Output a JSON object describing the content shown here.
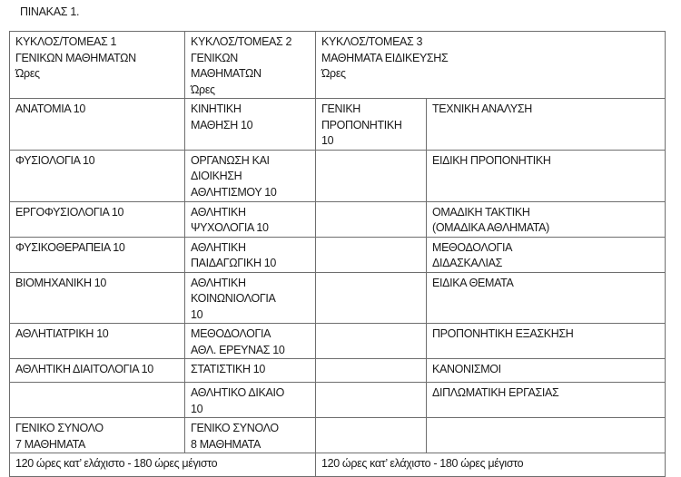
{
  "title": "ΠΙΝΑΚΑΣ 1.",
  "headers": [
    "ΚΥΚΛΟΣ/ΤΟΜΕΑΣ 1\nΓΕΝΙΚΩΝ ΜΑΘΗΜΑΤΩΝ\nΏρες",
    "ΚΥΚΛΟΣ/ΤΟΜΕΑΣ 2\nΓΕΝΙΚΩΝ\nΜΑΘΗΜΑΤΩΝ\nΏρες",
    "ΚΥΚΛΟΣ/ΤΟΜΕΑΣ 3\nΜΑΘΗΜΑΤΑ ΕΙΔΙΚΕΥΣΗΣ\nΏρες"
  ],
  "rows": [
    [
      "ΑΝΑΤΟΜΙΑ 10",
      "ΚΙΝΗΤΙΚΗ\nΜΑΘΗΣΗ 10",
      "ΓΕΝΙΚΗ\nΠΡΟΠΟΝΗΤΙΚΗ\n10",
      "ΤΕΧΝΙΚΗ ΑΝΑΛΥΣΗ"
    ],
    [
      "ΦΥΣΙΟΛΟΓΙΑ 10",
      "ΟΡΓΑΝΩΣΗ ΚΑΙ\nΔΙΟΙΚΗΣΗ\nΑΘΛΗΤΙΣΜΟΥ 10",
      "",
      "ΕΙΔΙΚΗ ΠΡΟΠΟΝΗΤΙΚΗ"
    ],
    [
      "ΕΡΓΟΦΥΣΙΟΛΟΓΙΑ 10",
      "ΑΘΛΗΤΙΚΗ\nΨΥΧΟΛΟΓΙΑ 10",
      "",
      "ΟΜΑΔΙΚΗ ΤΑΚΤΙΚΗ\n(ΟΜΑΔΙΚΑ ΑΘΛΗΜΑΤΑ)"
    ],
    [
      "ΦΥΣΙΚΟΘΕΡΑΠΕΙΑ 10",
      "ΑΘΛΗΤΙΚΗ\nΠΑΙΔΑΓΩΓΙΚΗ 10",
      "",
      "ΜΕΘΟΔΟΛΟΓΙΑ\nΔΙΔΑΣΚΑΛΙΑΣ"
    ],
    [
      "ΒΙΟΜΗΧΑΝΙΚΗ 10",
      "ΑΘΛΗΤΙΚΗ\nΚΟΙΝΩΝΙΟΛΟΓΙΑ\n10",
      "",
      "ΕΙΔΙΚΑ ΘΕΜΑΤΑ"
    ],
    [
      "ΑΘΛΗΤΙΑΤΡΙΚΗ 10",
      "ΜΕΘΟΔΟΛΟΓΙΑ\nΑΘΛ. ΕΡΕΥΝΑΣ 10",
      "",
      "ΠΡΟΠΟΝΗΤΙΚΗ ΕΞΑΣΚΗΣΗ"
    ],
    [
      "ΑΘΛΗΤΙΚΗ ΔΙΑΙΤΟΛΟΓΙΑ 10",
      "ΣΤΑΤΙΣΤΙΚΗ 10",
      "",
      "ΚΑΝΟΝΙΣΜΟΙ"
    ],
    [
      "",
      "ΑΘΛΗΤΙΚΟ ΔΙΚΑΙΟ\n10",
      "",
      "ΔΙΠΛΩΜΑΤΙΚΗ ΕΡΓΑΣΙΑΣ"
    ],
    [
      "ΓΕΝΙΚΟ ΣΥΝΟΛΟ\n7 ΜΑΘΗΜΑΤΑ",
      "ΓΕΝΙΚΟ ΣΥΝΟΛΟ\n8 ΜΑΘΗΜΑΤΑ",
      "",
      ""
    ]
  ],
  "footer": [
    "120 ώρες κατ’ ελάχιστο - 180 ώρες μέγιστο",
    "120 ώρες κατ’ ελάχιστο - 180 ώρες μέγιστο"
  ]
}
